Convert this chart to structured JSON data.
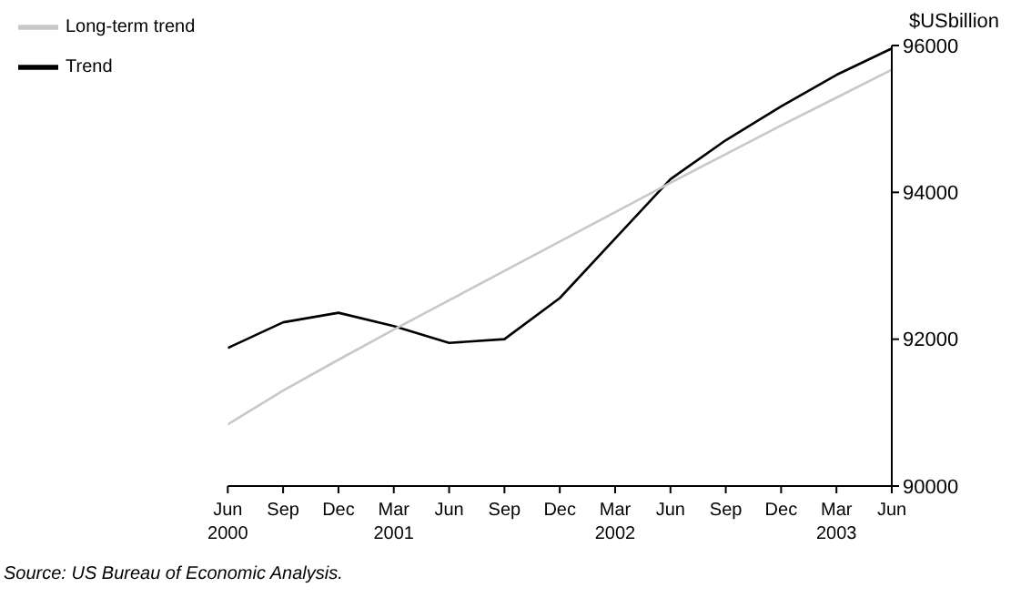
{
  "chart_data": {
    "type": "line",
    "ylabel": "$USbillion",
    "categories": [
      "Jun\n2000",
      "Sep",
      "Dec",
      "Mar\n2001",
      "Jun",
      "Sep",
      "Dec",
      "Mar\n2002",
      "Jun",
      "Sep",
      "Dec",
      "Mar\n2003",
      "Jun"
    ],
    "series": [
      {
        "name": "Trend",
        "color": "#000000",
        "values": [
          91880,
          92230,
          92360,
          92180,
          91950,
          92000,
          92560,
          93370,
          94180,
          94710,
          95170,
          95600,
          95960
        ]
      },
      {
        "name": "Long-term trend",
        "color": "#c8c8c8",
        "values": [
          90840,
          91300,
          91720,
          92130,
          92530,
          92930,
          93330,
          93730,
          94130,
          94520,
          94910,
          95290,
          95670
        ]
      }
    ],
    "ylim": [
      90000,
      96000
    ],
    "yticks": [
      90000,
      92000,
      94000,
      96000
    ],
    "grid": false,
    "legend": "top left",
    "marker": "none",
    "line_style": "solid",
    "annotations": [
      "Source: US Bureau of Economic Analysis."
    ]
  }
}
